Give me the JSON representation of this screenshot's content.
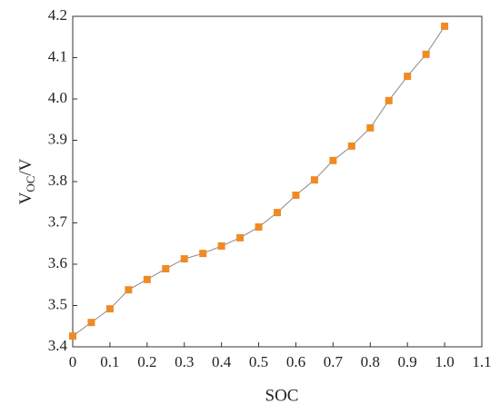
{
  "chart_data": {
    "type": "line",
    "xlabel": "SOC",
    "ylabel": [
      "V",
      "OC",
      "/V"
    ],
    "x": [
      0,
      0.05,
      0.1,
      0.15,
      0.2,
      0.25,
      0.3,
      0.35,
      0.4,
      0.45,
      0.5,
      0.55,
      0.6,
      0.65,
      0.7,
      0.75,
      0.8,
      0.85,
      0.9,
      0.95,
      1.0
    ],
    "series": [
      {
        "color": "#f08a24",
        "line_color": "#888888",
        "values": [
          3.426,
          3.459,
          3.492,
          3.538,
          3.563,
          3.589,
          3.613,
          3.626,
          3.644,
          3.664,
          3.69,
          3.725,
          3.767,
          3.804,
          3.851,
          3.886,
          3.93,
          3.996,
          4.055,
          4.108,
          4.176
        ]
      }
    ],
    "xlim": [
      0,
      1.1
    ],
    "xticks": [
      0,
      0.1,
      0.2,
      0.3,
      0.4,
      0.5,
      0.6,
      0.7,
      0.8,
      0.9,
      {
        "value": 1,
        "label": "1.0"
      },
      1.1
    ],
    "ylim": [
      3.4,
      4.2
    ],
    "yticks": [
      3.4,
      3.5,
      3.6,
      3.7,
      3.8,
      3.9,
      {
        "value": 4,
        "label": "4.0"
      },
      4.1,
      4.2
    ],
    "grid": false
  }
}
